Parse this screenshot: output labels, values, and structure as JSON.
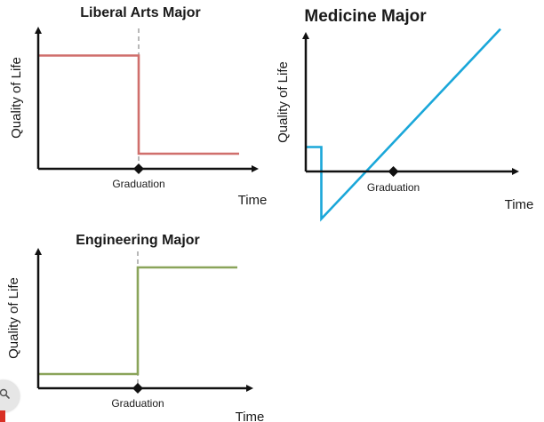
{
  "chart_data": [
    {
      "type": "line",
      "title": "Liberal Arts Major",
      "ylabel": "Quality of Life",
      "xlabel": "Time",
      "xtick_label": "Graduation",
      "line_color": "#d06f6c",
      "series": [
        {
          "values": [
            [
              0,
              7.5
            ],
            [
              5,
              7.5
            ],
            [
              5,
              1.0
            ],
            [
              10,
              1.0
            ]
          ]
        }
      ],
      "xlim": [
        0,
        10
      ],
      "ylim": [
        0,
        10
      ],
      "graduation_x": 5
    },
    {
      "type": "line",
      "title": "Medicine Major",
      "ylabel": "Quality of Life",
      "xlabel": "Time",
      "xtick_label": "Graduation",
      "line_color": "#1aa7d9",
      "series": [
        {
          "values": [
            [
              0,
              0.8
            ],
            [
              0.8,
              0.8
            ],
            [
              0.8,
              -4.5
            ],
            [
              10,
              9.5
            ]
          ]
        }
      ],
      "xlim": [
        0,
        10
      ],
      "ylim": [
        -5,
        10
      ],
      "graduation_x": 4.5
    },
    {
      "type": "line",
      "title": "Engineering Major",
      "ylabel": "Quality of Life",
      "xlabel": "Time",
      "xtick_label": "Graduation",
      "line_color": "#8aa45a",
      "series": [
        {
          "values": [
            [
              0,
              1.0
            ],
            [
              5,
              1.0
            ],
            [
              5,
              8.5
            ],
            [
              10,
              8.5
            ]
          ]
        }
      ],
      "xlim": [
        0,
        10
      ],
      "ylim": [
        0,
        10
      ],
      "graduation_x": 5
    }
  ],
  "icons": {
    "zoom": "zoom-icon",
    "arrow_up": "arrow-up-icon",
    "arrow_right": "arrow-right-icon",
    "graduation_marker": "diamond-marker-icon"
  },
  "colors": {
    "axis": "#111111",
    "dashed_guide": "#b8b8b8"
  }
}
